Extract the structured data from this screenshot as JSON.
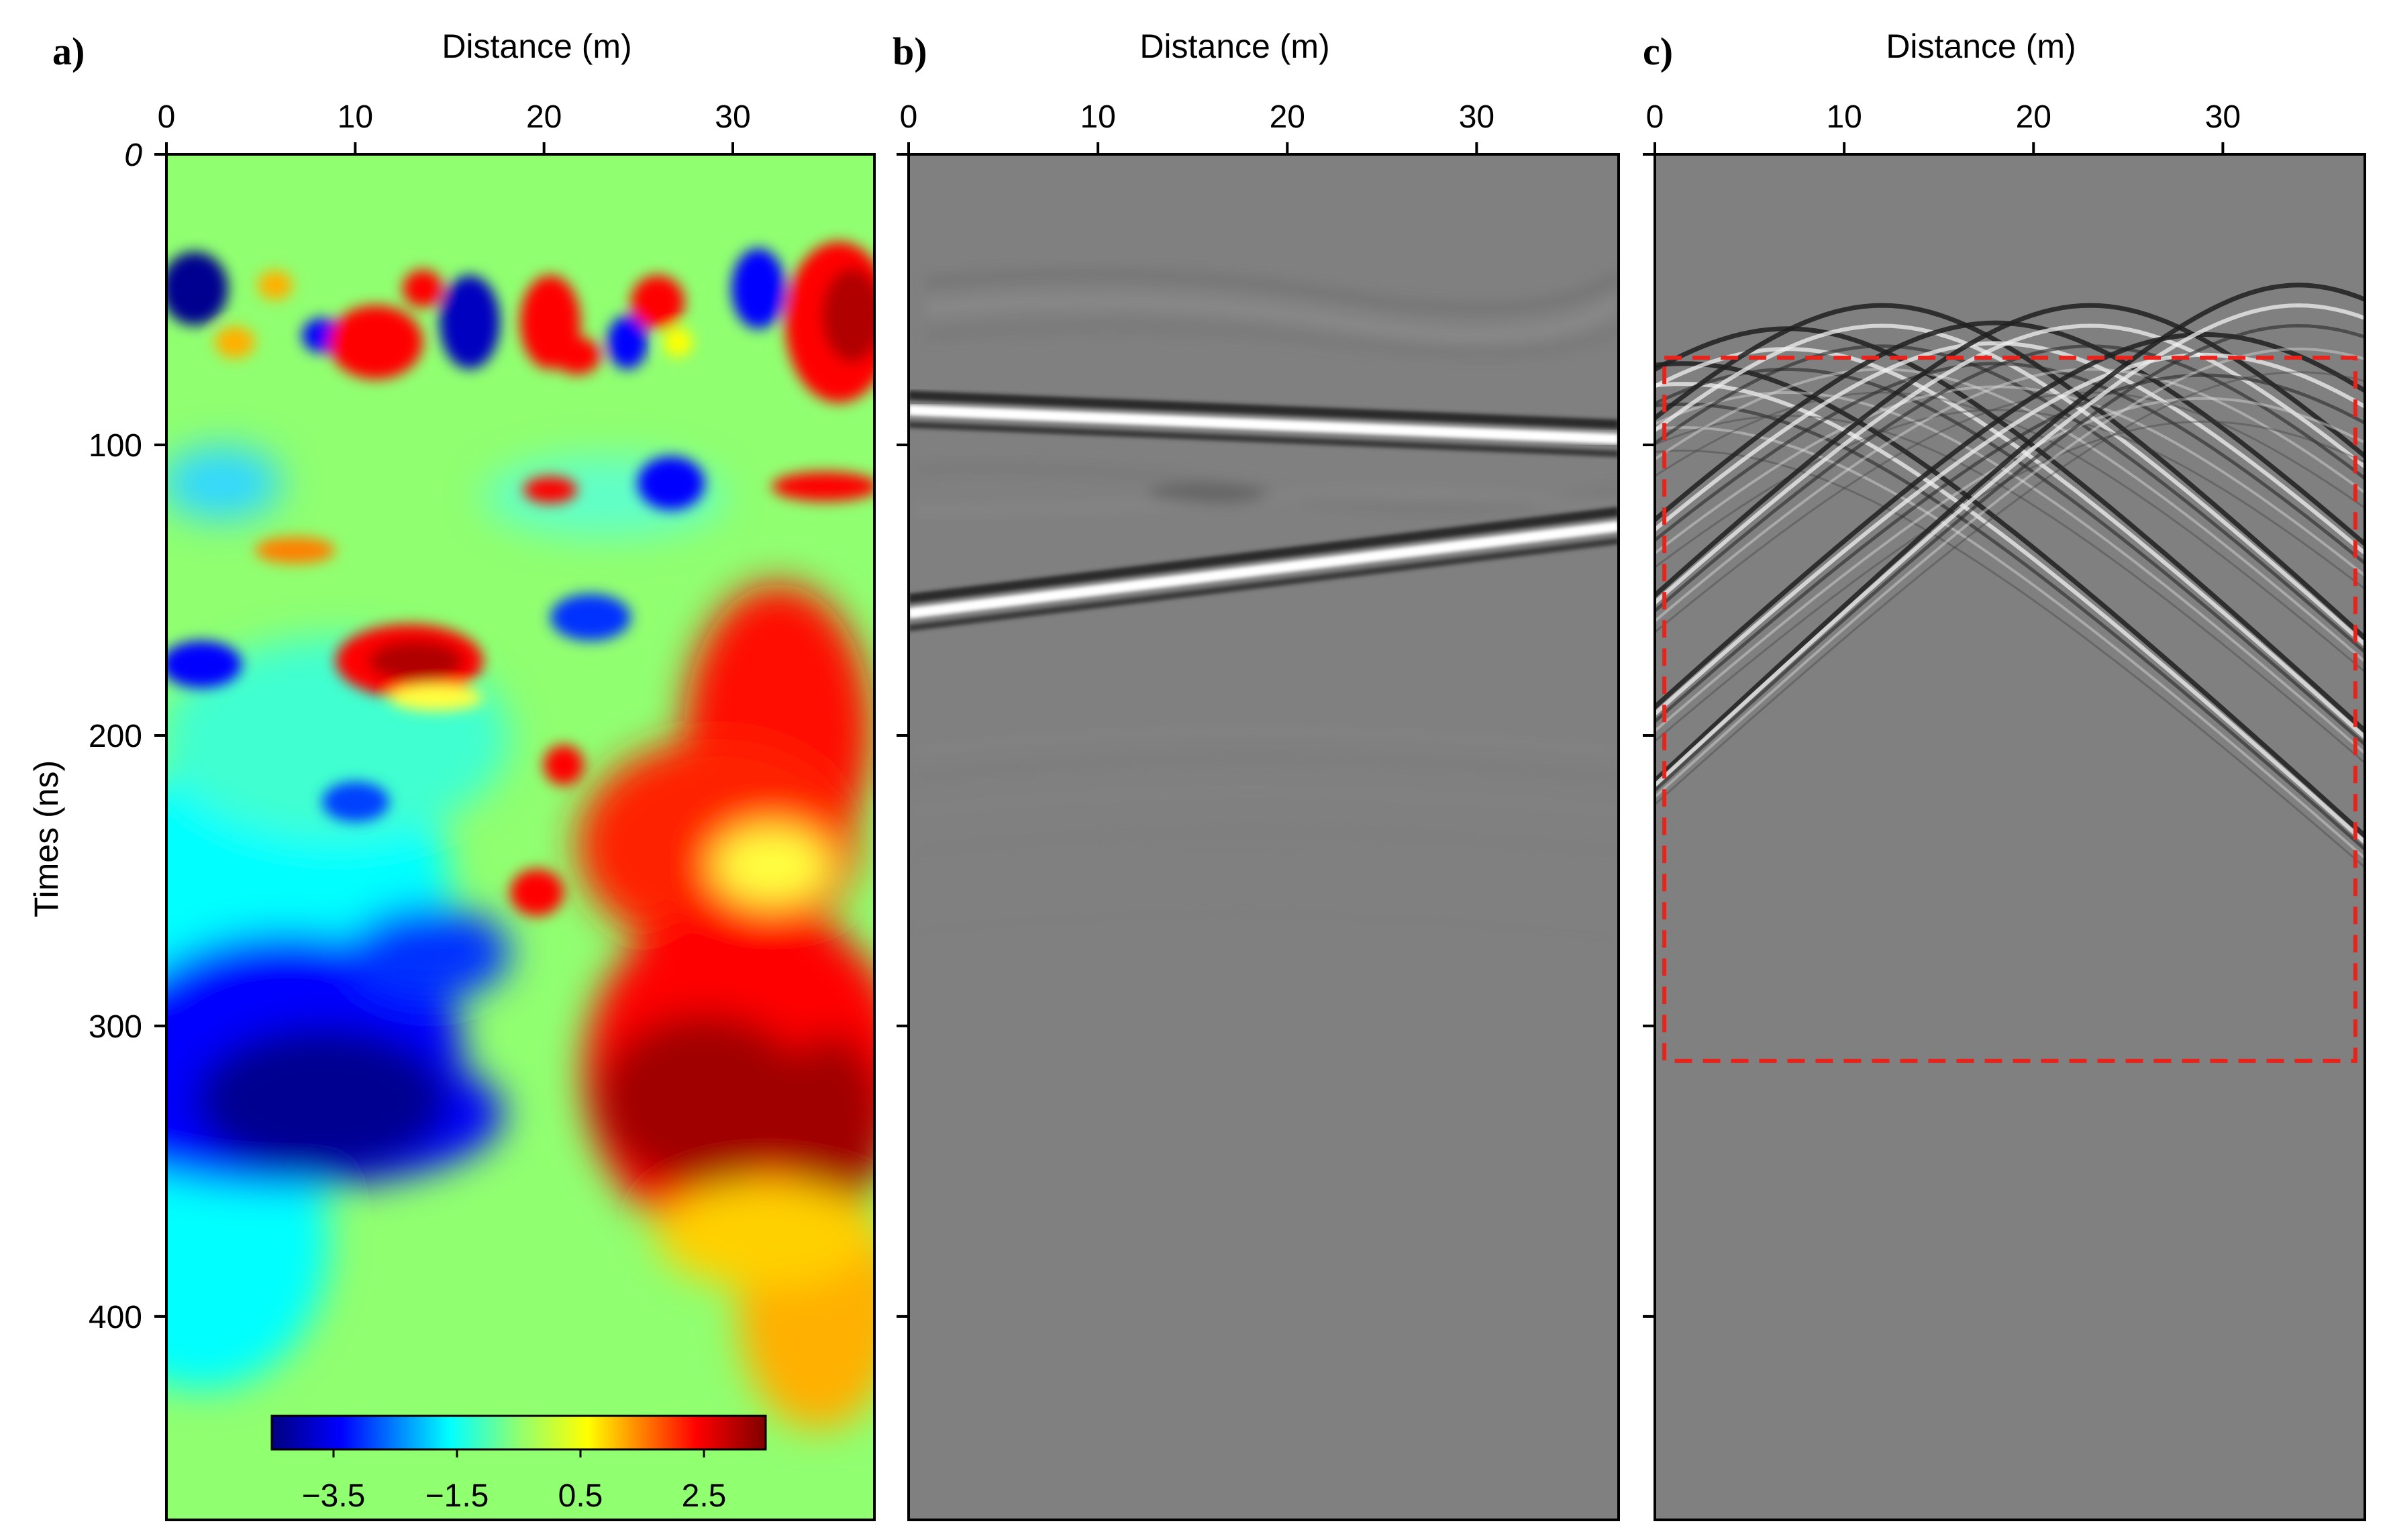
{
  "figure": {
    "panels": [
      {
        "id": "a",
        "letter": "a)",
        "content": "permittivity-model"
      },
      {
        "id": "b",
        "letter": "b)",
        "content": "direct-and-reflected-waves"
      },
      {
        "id": "c",
        "letter": "c)",
        "content": "diffraction-hyperbolas"
      }
    ]
  },
  "chart_data": [
    {
      "type": "heatmap",
      "panel": "a)",
      "xlabel": "Distance (m)",
      "ylabel": "Times (ns)",
      "xticks": [
        0,
        10,
        20,
        30
      ],
      "yticks": [
        0,
        100,
        200,
        300,
        400
      ],
      "xlim": [
        0,
        37.5
      ],
      "ylim": [
        470,
        0
      ],
      "colormap": "jet",
      "colorbar": {
        "ticks": [
          "−3.5",
          "−1.5",
          "0.5",
          "2.5"
        ],
        "range": [
          -4.5,
          3.5
        ]
      },
      "colors": {
        "low": "#00007f",
        "mid": "#90ff70",
        "high": "#7f0000"
      }
    },
    {
      "type": "heatmap",
      "panel": "b)",
      "xlabel": "Distance (m)",
      "xticks": [
        0,
        10,
        20,
        30
      ],
      "xlim": [
        0,
        37.5
      ],
      "ylim": [
        470,
        0
      ],
      "colormap": "gray",
      "features": [
        {
          "kind": "dipping-event",
          "t_left_ns": 88,
          "t_right_ns": 98
        },
        {
          "kind": "dipping-event",
          "t_left_ns": 158,
          "t_right_ns": 128
        }
      ]
    },
    {
      "type": "heatmap",
      "panel": "c)",
      "xlabel": "Distance (m)",
      "xticks": [
        0,
        10,
        20,
        30
      ],
      "xlim": [
        0,
        37.5
      ],
      "ylim": [
        470,
        0
      ],
      "colormap": "gray",
      "hyperbola_apex_x_m": [
        1.5,
        7,
        12,
        18,
        23,
        29,
        34
      ],
      "highlight_box": {
        "x0_m": 0.5,
        "x1_m": 37,
        "t0_ns": 70,
        "t1_ns": 312,
        "color": "#e8231c"
      }
    }
  ]
}
